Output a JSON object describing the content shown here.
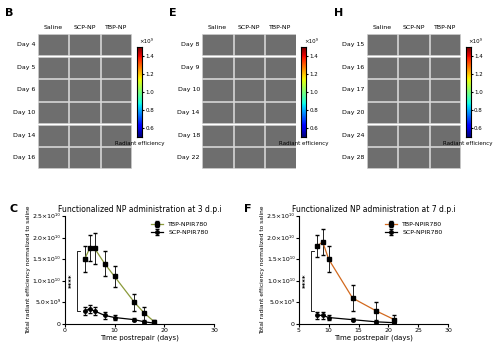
{
  "panels": [
    {
      "letter": "B",
      "columns": [
        "Saline",
        "SCP-NP",
        "TBP-NP"
      ],
      "rows": [
        "Day 4",
        "Day 5",
        "Day 6",
        "Day 10",
        "Day 14",
        "Day 16"
      ],
      "colorbar_label": "Radiant efficiency",
      "colorbar_unit": "×10⁹",
      "colorbar_lim": [
        0.5,
        1.5
      ],
      "colorbar_ticks": [
        0.6,
        0.8,
        1.0,
        1.2,
        1.4
      ]
    },
    {
      "letter": "E",
      "columns": [
        "Saline",
        "SCP-NP",
        "TBP-NP"
      ],
      "rows": [
        "Day 8",
        "Day 9",
        "Day 10",
        "Day 14",
        "Day 18",
        "Day 22"
      ],
      "colorbar_label": "Radiant efficiency",
      "colorbar_unit": "×10⁹",
      "colorbar_lim": [
        0.5,
        1.5
      ],
      "colorbar_ticks": [
        0.6,
        0.8,
        1.0,
        1.2,
        1.4
      ]
    },
    {
      "letter": "H",
      "columns": [
        "Saline",
        "SCP-NP",
        "TBP-NP"
      ],
      "rows": [
        "Day 15",
        "Day 16",
        "Day 17",
        "Day 20",
        "Day 24",
        "Day 28"
      ],
      "colorbar_label": "Radiant efficiency",
      "colorbar_unit": "×10⁹",
      "colorbar_lim": [
        0.5,
        1.5
      ],
      "colorbar_ticks": [
        0.6,
        0.8,
        1.0,
        1.2,
        1.4
      ]
    }
  ],
  "chart_data": [
    {
      "type": "line",
      "letter": "C",
      "title": "Functionalized NP administration at 3 d.p.i",
      "x_label": "Time postrepair (days)",
      "y_label": "Total radiant efficiency normalized to saline",
      "annotation": "****",
      "legend": "upper right",
      "x": [
        4,
        5,
        6,
        8,
        10,
        14,
        16,
        18
      ],
      "series": [
        {
          "name": "TBP-NPIR780",
          "color": "#8a9a3a",
          "marker": "s",
          "values": [
            15000000000,
            17500000000,
            17500000000,
            14000000000,
            11000000000,
            5000000000,
            2500000000,
            500000000
          ],
          "errors": [
            3000000000,
            3000000000,
            3500000000,
            3000000000,
            2500000000,
            2000000000,
            1500000000,
            500000000
          ]
        },
        {
          "name": "SCP-NPIR780",
          "color": "#000000",
          "marker": "o",
          "values": [
            3000000000,
            3500000000,
            3000000000,
            2000000000,
            1500000000,
            1000000000,
            500000000,
            200000000
          ],
          "errors": [
            1000000000,
            1000000000,
            1000000000,
            800000000,
            500000000,
            400000000,
            300000000,
            200000000
          ]
        }
      ],
      "xlim": [
        0,
        30
      ],
      "xticks": [
        0,
        10,
        20,
        30
      ],
      "ylim": [
        0,
        25000000000
      ],
      "yticks": [
        0,
        {
          "value": 5000000000,
          "label": "5.0×10⁹"
        },
        {
          "value": 10000000000,
          "label": "1.0×10¹⁰"
        },
        {
          "value": 15000000000,
          "label": "1.5×10¹⁰"
        },
        {
          "value": 20000000000,
          "label": "2.0×10¹⁰"
        },
        {
          "value": 25000000000,
          "label": "2.5×10¹⁰"
        }
      ]
    },
    {
      "type": "line",
      "letter": "F",
      "title": "Functionalized NP administration at 7 d.p.i",
      "x_label": "Time postrepair (days)",
      "y_label": "Total radiant efficiency normalized to saline",
      "annotation": "****",
      "legend": "upper right",
      "x": [
        8,
        9,
        10,
        14,
        18,
        21
      ],
      "series": [
        {
          "name": "TBP-NPIR780",
          "color": "#d2691e",
          "marker": "s",
          "values": [
            18000000000,
            19000000000,
            15000000000,
            6000000000,
            3000000000,
            1000000000
          ],
          "errors": [
            2500000000,
            3000000000,
            3000000000,
            3000000000,
            2000000000,
            1000000000
          ]
        },
        {
          "name": "SCP-NPIR780",
          "color": "#000000",
          "marker": "o",
          "values": [
            2000000000,
            2000000000,
            1500000000,
            1000000000,
            500000000,
            300000000
          ],
          "errors": [
            800000000,
            800000000,
            600000000,
            400000000,
            300000000,
            200000000
          ]
        }
      ],
      "xlim": [
        5,
        30
      ],
      "xticks": [
        5,
        10,
        15,
        20,
        25,
        30
      ],
      "ylim": [
        0,
        25000000000
      ],
      "yticks": [
        0,
        {
          "value": 5000000000,
          "label": "5.0×10⁹"
        },
        {
          "value": 10000000000,
          "label": "1.0×10¹⁰"
        },
        {
          "value": 15000000000,
          "label": "1.5×10¹⁰"
        },
        {
          "value": 20000000000,
          "label": "2.0×10¹⁰"
        },
        {
          "value": 25000000000,
          "label": "2.5×10¹⁰"
        }
      ]
    }
  ]
}
